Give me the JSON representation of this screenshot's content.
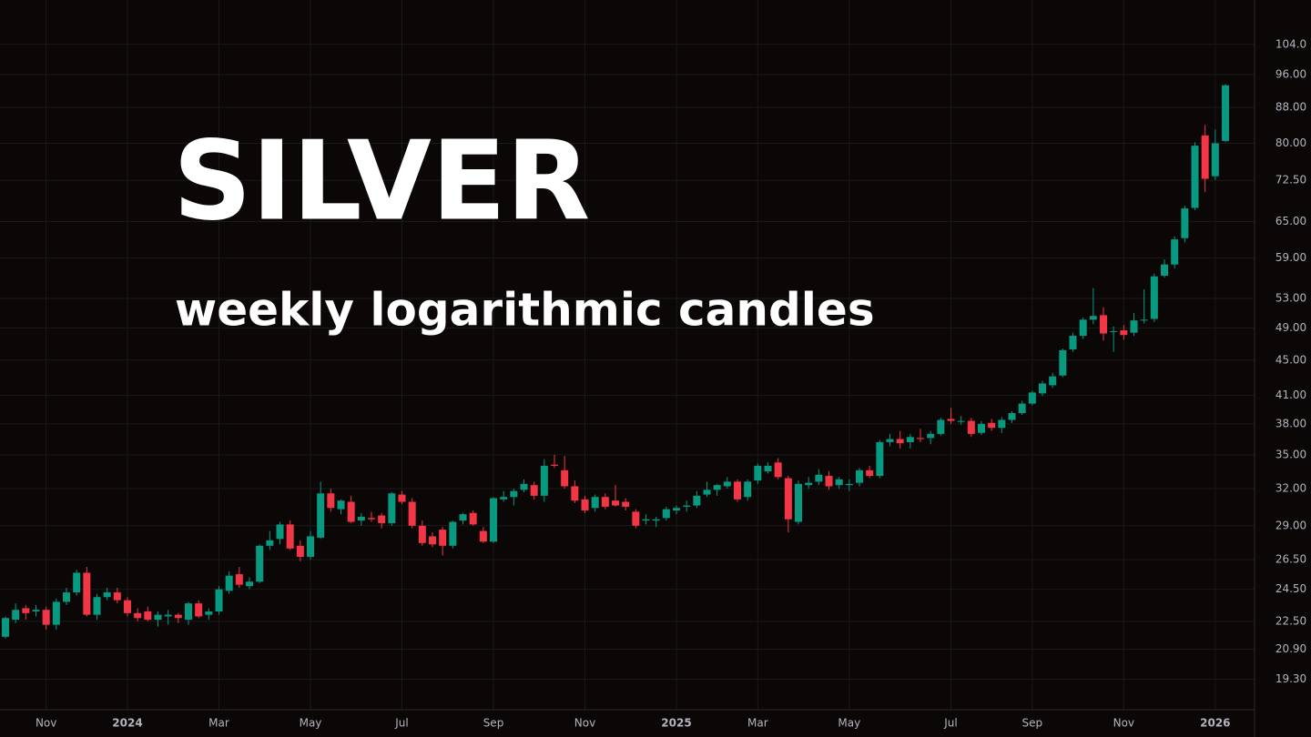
{
  "chart_data": {
    "type": "candlestick",
    "title": "SILVER",
    "subtitle": "weekly logarithmic candles",
    "log_scale": true,
    "grid": true,
    "up_color": "#089981",
    "down_color": "#f23645",
    "ylim": [
      17.8,
      117
    ],
    "yticks": [
      {
        "value": 104,
        "label": "104.0"
      },
      {
        "value": 96,
        "label": "96.00"
      },
      {
        "value": 88,
        "label": "88.00"
      },
      {
        "value": 80,
        "label": "80.00"
      },
      {
        "value": 72.5,
        "label": "72.50"
      },
      {
        "value": 65,
        "label": "65.00"
      },
      {
        "value": 59,
        "label": "59.00"
      },
      {
        "value": 53,
        "label": "53.00"
      },
      {
        "value": 49,
        "label": "49.00"
      },
      {
        "value": 45,
        "label": "45.00"
      },
      {
        "value": 41,
        "label": "41.00"
      },
      {
        "value": 38,
        "label": "38.00"
      },
      {
        "value": 35,
        "label": "35.00"
      },
      {
        "value": 32,
        "label": "32.00"
      },
      {
        "value": 29,
        "label": "29.00"
      },
      {
        "value": 26.5,
        "label": "26.50"
      },
      {
        "value": 24.5,
        "label": "24.50"
      },
      {
        "value": 22.5,
        "label": "22.50"
      },
      {
        "value": 20.9,
        "label": "20.90"
      },
      {
        "value": 19.3,
        "label": "19.30"
      }
    ],
    "categories": [
      null,
      null,
      null,
      null,
      "Nov",
      null,
      null,
      null,
      null,
      null,
      null,
      null,
      "2024",
      null,
      null,
      null,
      null,
      null,
      null,
      null,
      null,
      "Mar",
      null,
      null,
      null,
      null,
      null,
      null,
      null,
      null,
      "May",
      null,
      null,
      null,
      null,
      null,
      null,
      null,
      null,
      "Jul",
      null,
      null,
      null,
      null,
      null,
      null,
      null,
      null,
      "Sep",
      null,
      null,
      null,
      null,
      null,
      null,
      null,
      null,
      "Nov",
      null,
      null,
      null,
      null,
      null,
      null,
      null,
      null,
      "2025",
      null,
      null,
      null,
      null,
      null,
      null,
      null,
      "Mar",
      null,
      null,
      null,
      null,
      null,
      null,
      null,
      null,
      "May",
      null,
      null,
      null,
      null,
      null,
      null,
      null,
      null,
      null,
      "Jul",
      null,
      null,
      null,
      null,
      null,
      null,
      null,
      "Sep",
      null,
      null,
      null,
      null,
      null,
      null,
      null,
      null,
      "Nov",
      null,
      null,
      null,
      null,
      null,
      null,
      null,
      null,
      "2026",
      null
    ],
    "open": [
      21.6,
      22.6,
      23.3,
      23.1,
      23.2,
      22.3,
      23.7,
      24.3,
      25.6,
      22.9,
      24.0,
      24.3,
      23.8,
      23.0,
      23.1,
      22.6,
      22.8,
      22.9,
      22.6,
      23.6,
      22.9,
      23.1,
      24.4,
      25.5,
      24.7,
      25.0,
      27.5,
      28.0,
      29.1,
      27.5,
      26.7,
      28.1,
      31.6,
      30.3,
      30.9,
      29.4,
      29.6,
      29.8,
      29.2,
      31.5,
      30.9,
      29.0,
      28.2,
      28.7,
      27.5,
      29.4,
      30.0,
      28.6,
      27.8,
      31.1,
      31.3,
      31.9,
      32.3,
      31.4,
      34.1,
      33.6,
      32.2,
      31.1,
      30.4,
      31.3,
      31.0,
      30.9,
      30.1,
      29.4,
      29.4,
      29.6,
      30.2,
      30.5,
      30.6,
      31.5,
      31.9,
      32.2,
      32.6,
      31.3,
      32.7,
      33.5,
      34.3,
      32.9,
      29.3,
      32.3,
      32.6,
      33.1,
      32.3,
      32.3,
      32.5,
      33.6,
      33.1,
      36.2,
      36.5,
      36.2,
      36.6,
      36.6,
      37.0,
      38.5,
      38.2,
      38.3,
      37.1,
      38.1,
      37.6,
      38.4,
      39.1,
      40.1,
      41.2,
      42.1,
      43.2,
      46.3,
      48.0,
      50.1,
      50.7,
      48.5,
      48.7,
      48.4,
      50.0,
      50.2,
      56.3,
      58.0,
      62.2,
      67.4,
      81.7,
      73.3,
      80.5
    ],
    "high": [
      22.8,
      23.6,
      23.5,
      23.5,
      23.4,
      23.9,
      24.6,
      25.8,
      26.0,
      24.2,
      24.6,
      24.6,
      24.0,
      23.3,
      23.4,
      23.1,
      23.2,
      23.0,
      23.7,
      23.8,
      23.3,
      24.7,
      25.7,
      26.0,
      25.3,
      27.6,
      28.6,
      29.3,
      29.4,
      27.9,
      28.6,
      32.6,
      32.0,
      31.1,
      31.4,
      30.0,
      30.1,
      30.0,
      31.7,
      31.8,
      31.2,
      29.4,
      28.5,
      28.9,
      29.4,
      30.0,
      30.2,
      28.9,
      31.3,
      31.8,
      32.0,
      32.8,
      32.6,
      34.6,
      35.0,
      34.9,
      32.7,
      31.4,
      31.5,
      31.6,
      32.3,
      31.2,
      30.3,
      29.9,
      29.7,
      30.5,
      30.6,
      31.0,
      31.8,
      32.6,
      32.4,
      33.0,
      32.8,
      32.8,
      34.2,
      34.3,
      34.7,
      33.1,
      32.7,
      33.0,
      33.7,
      33.5,
      33.0,
      32.8,
      33.8,
      34.0,
      36.4,
      37.0,
      37.3,
      37.0,
      37.5,
      37.3,
      38.6,
      39.6,
      38.8,
      38.6,
      38.3,
      38.5,
      38.7,
      39.3,
      40.4,
      41.5,
      42.6,
      43.5,
      46.4,
      48.4,
      50.4,
      54.5,
      51.8,
      49.2,
      49.4,
      51.0,
      54.3,
      56.6,
      58.8,
      62.5,
      67.8,
      80.2,
      84.0,
      83.0,
      93.6
    ],
    "low": [
      21.5,
      22.4,
      22.6,
      22.8,
      22.0,
      22.0,
      23.5,
      24.1,
      22.8,
      22.6,
      23.8,
      23.6,
      22.8,
      22.5,
      22.5,
      22.2,
      22.3,
      22.4,
      22.3,
      22.7,
      22.6,
      22.9,
      24.2,
      24.6,
      24.5,
      24.9,
      27.2,
      27.6,
      27.2,
      26.4,
      26.5,
      28.0,
      30.1,
      29.9,
      29.2,
      29.0,
      29.3,
      28.8,
      29.0,
      30.7,
      28.8,
      27.5,
      27.4,
      26.8,
      27.3,
      29.1,
      29.0,
      27.7,
      27.7,
      30.9,
      30.6,
      31.7,
      31.1,
      30.9,
      33.8,
      32.0,
      30.8,
      30.0,
      30.1,
      30.3,
      30.5,
      30.2,
      28.8,
      29.1,
      28.9,
      29.4,
      29.9,
      30.1,
      30.4,
      31.3,
      31.4,
      32.0,
      30.9,
      31.0,
      32.4,
      33.3,
      32.8,
      28.5,
      29.1,
      32.0,
      32.3,
      31.9,
      32.0,
      31.8,
      32.2,
      32.9,
      32.9,
      35.8,
      35.6,
      35.6,
      36.2,
      36.0,
      36.8,
      38.0,
      37.9,
      36.7,
      36.9,
      37.3,
      37.1,
      38.1,
      38.9,
      39.9,
      40.9,
      41.8,
      43.0,
      46.0,
      47.6,
      49.5,
      47.4,
      46.0,
      47.5,
      48.0,
      49.6,
      49.8,
      56.0,
      57.4,
      61.5,
      67.0,
      70.3,
      72.6,
      80.2
    ],
    "close": [
      22.7,
      23.2,
      23.0,
      23.2,
      22.3,
      23.7,
      24.3,
      25.6,
      22.9,
      24.0,
      24.3,
      23.8,
      23.0,
      22.7,
      22.6,
      22.9,
      22.9,
      22.7,
      23.6,
      22.8,
      23.1,
      24.5,
      25.4,
      24.8,
      25.0,
      27.5,
      27.9,
      29.1,
      27.3,
      26.7,
      28.2,
      31.6,
      30.4,
      31.0,
      29.3,
      29.7,
      29.5,
      29.2,
      31.6,
      30.9,
      29.0,
      27.7,
      27.6,
      27.5,
      29.3,
      29.9,
      29.1,
      27.8,
      31.2,
      31.3,
      31.8,
      32.4,
      31.4,
      34.0,
      34.0,
      32.2,
      31.0,
      30.2,
      31.3,
      30.5,
      30.6,
      30.5,
      29.0,
      29.5,
      29.5,
      30.3,
      30.4,
      30.6,
      31.4,
      31.9,
      32.3,
      32.6,
      31.1,
      32.6,
      34.0,
      34.0,
      33.0,
      29.5,
      32.4,
      32.5,
      33.2,
      32.2,
      32.8,
      32.4,
      33.6,
      33.1,
      36.2,
      36.5,
      36.1,
      36.7,
      36.5,
      37.0,
      38.4,
      38.3,
      38.3,
      37.0,
      38.0,
      37.6,
      38.4,
      39.1,
      40.1,
      41.3,
      42.3,
      43.1,
      46.2,
      48.0,
      50.1,
      50.6,
      48.3,
      48.6,
      48.1,
      50.0,
      50.1,
      56.2,
      58.0,
      62.0,
      67.3,
      79.5,
      72.8,
      80.0,
      93.3
    ]
  }
}
